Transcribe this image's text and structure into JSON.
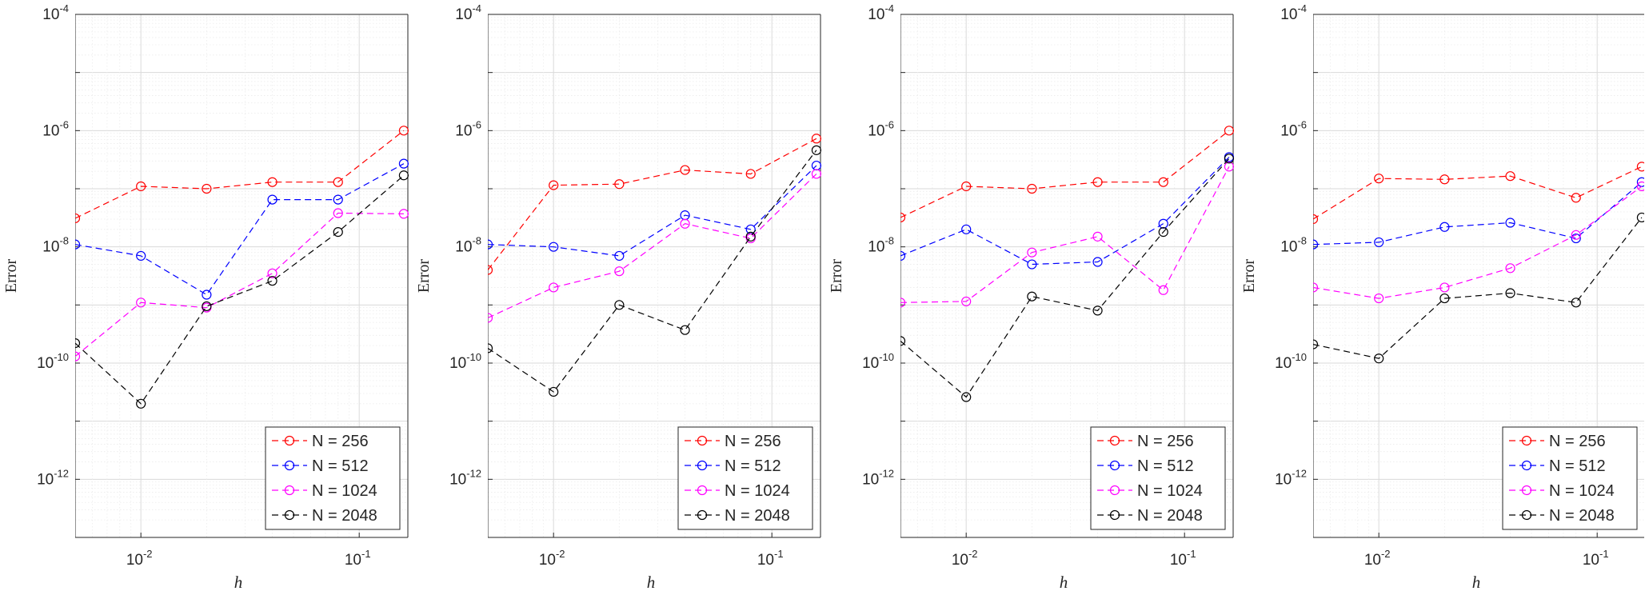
{
  "chart_data": [
    {
      "type": "line",
      "xscale": "log",
      "yscale": "log",
      "xlabel": "h",
      "ylabel": "Error",
      "xlim": [
        0.005,
        0.167
      ],
      "ylim": [
        1e-13,
        0.0001
      ],
      "xticks": [
        {
          "base": "10",
          "exp": "-2"
        },
        {
          "base": "10",
          "exp": "-1"
        }
      ],
      "yticks": [
        {
          "base": "10",
          "exp": "-4"
        },
        {
          "base": "10",
          "exp": "-6"
        },
        {
          "base": "10",
          "exp": "-8"
        },
        {
          "base": "10",
          "exp": "-10"
        },
        {
          "base": "10",
          "exp": "-12"
        }
      ],
      "grid": true,
      "legend_position": "bottom-right",
      "x": [
        0.005,
        0.01,
        0.02,
        0.04,
        0.08,
        0.16
      ],
      "series": [
        {
          "name": "N = 256",
          "color": "#ff0000",
          "values": [
            3.1e-08,
            1.1e-07,
            1e-07,
            1.3e-07,
            1.3e-07,
            1e-06
          ]
        },
        {
          "name": "N = 512",
          "color": "#0000ff",
          "values": [
            1.1e-08,
            7e-09,
            1.5e-09,
            6.5e-08,
            6.5e-08,
            2.7e-07
          ]
        },
        {
          "name": "N = 1024",
          "color": "#ff00ff",
          "values": [
            1.3e-10,
            1.1e-09,
            9e-10,
            3.5e-09,
            3.8e-08,
            3.7e-08
          ]
        },
        {
          "name": "N = 2048",
          "color": "#000000",
          "values": [
            2.2e-10,
            2e-11,
            9.5e-10,
            2.6e-09,
            1.8e-08,
            1.7e-07
          ]
        }
      ]
    },
    {
      "type": "line",
      "xscale": "log",
      "yscale": "log",
      "xlabel": "h",
      "ylabel": "Error",
      "xlim": [
        0.005,
        0.167
      ],
      "ylim": [
        1e-13,
        0.0001
      ],
      "xticks": [
        {
          "base": "10",
          "exp": "-2"
        },
        {
          "base": "10",
          "exp": "-1"
        }
      ],
      "yticks": [
        {
          "base": "10",
          "exp": "-4"
        },
        {
          "base": "10",
          "exp": "-6"
        },
        {
          "base": "10",
          "exp": "-8"
        },
        {
          "base": "10",
          "exp": "-10"
        },
        {
          "base": "10",
          "exp": "-12"
        }
      ],
      "grid": true,
      "legend_position": "bottom-right",
      "x": [
        0.005,
        0.01,
        0.02,
        0.04,
        0.08,
        0.16
      ],
      "series": [
        {
          "name": "N = 256",
          "color": "#ff0000",
          "values": [
            4e-09,
            1.15e-07,
            1.2e-07,
            2.1e-07,
            1.8e-07,
            7.3e-07
          ]
        },
        {
          "name": "N = 512",
          "color": "#0000ff",
          "values": [
            1.1e-08,
            1e-08,
            7e-09,
            3.5e-08,
            2e-08,
            2.5e-07
          ]
        },
        {
          "name": "N = 1024",
          "color": "#ff00ff",
          "values": [
            6e-10,
            2e-09,
            3.8e-09,
            2.5e-08,
            1.4e-08,
            1.8e-07
          ]
        },
        {
          "name": "N = 2048",
          "color": "#000000",
          "values": [
            1.8e-10,
            3.2e-11,
            1e-09,
            3.7e-10,
            1.5e-08,
            4.6e-07
          ]
        }
      ]
    },
    {
      "type": "line",
      "xscale": "log",
      "yscale": "log",
      "xlabel": "h",
      "ylabel": "Error",
      "xlim": [
        0.005,
        0.167
      ],
      "ylim": [
        1e-13,
        0.0001
      ],
      "xticks": [
        {
          "base": "10",
          "exp": "-2"
        },
        {
          "base": "10",
          "exp": "-1"
        }
      ],
      "yticks": [
        {
          "base": "10",
          "exp": "-4"
        },
        {
          "base": "10",
          "exp": "-6"
        },
        {
          "base": "10",
          "exp": "-8"
        },
        {
          "base": "10",
          "exp": "-10"
        },
        {
          "base": "10",
          "exp": "-12"
        }
      ],
      "grid": true,
      "legend_position": "bottom-right",
      "x": [
        0.005,
        0.01,
        0.02,
        0.04,
        0.08,
        0.16
      ],
      "series": [
        {
          "name": "N = 256",
          "color": "#ff0000",
          "values": [
            3.2e-08,
            1.1e-07,
            1e-07,
            1.3e-07,
            1.3e-07,
            1e-06
          ]
        },
        {
          "name": "N = 512",
          "color": "#0000ff",
          "values": [
            7e-09,
            2e-08,
            5e-09,
            5.5e-09,
            2.5e-08,
            3.5e-07
          ]
        },
        {
          "name": "N = 1024",
          "color": "#ff00ff",
          "values": [
            1.1e-09,
            1.15e-09,
            8e-09,
            1.5e-08,
            1.8e-09,
            2.4e-07
          ]
        },
        {
          "name": "N = 2048",
          "color": "#000000",
          "values": [
            2.4e-10,
            2.6e-11,
            1.4e-09,
            8e-10,
            1.8e-08,
            3.3e-07
          ]
        }
      ]
    },
    {
      "type": "line",
      "xscale": "log",
      "yscale": "log",
      "xlabel": "h",
      "ylabel": "Error",
      "xlim": [
        0.005,
        0.167
      ],
      "ylim": [
        1e-13,
        0.0001
      ],
      "xticks": [
        {
          "base": "10",
          "exp": "-2"
        },
        {
          "base": "10",
          "exp": "-1"
        }
      ],
      "yticks": [
        {
          "base": "10",
          "exp": "-4"
        },
        {
          "base": "10",
          "exp": "-6"
        },
        {
          "base": "10",
          "exp": "-8"
        },
        {
          "base": "10",
          "exp": "-10"
        },
        {
          "base": "10",
          "exp": "-12"
        }
      ],
      "grid": true,
      "legend_position": "bottom-right",
      "x": [
        0.005,
        0.01,
        0.02,
        0.04,
        0.08,
        0.16
      ],
      "series": [
        {
          "name": "N = 256",
          "color": "#ff0000",
          "values": [
            3e-08,
            1.5e-07,
            1.45e-07,
            1.65e-07,
            7e-08,
            2.4e-07
          ]
        },
        {
          "name": "N = 512",
          "color": "#0000ff",
          "values": [
            1.1e-08,
            1.2e-08,
            2.2e-08,
            2.6e-08,
            1.4e-08,
            1.3e-07
          ]
        },
        {
          "name": "N = 1024",
          "color": "#ff00ff",
          "values": [
            2e-09,
            1.3e-09,
            2e-09,
            4.3e-09,
            1.6e-08,
            1.1e-07
          ]
        },
        {
          "name": "N = 2048",
          "color": "#000000",
          "values": [
            2.1e-10,
            1.2e-10,
            1.3e-09,
            1.6e-09,
            1.1e-09,
            3.2e-08
          ]
        }
      ]
    }
  ]
}
